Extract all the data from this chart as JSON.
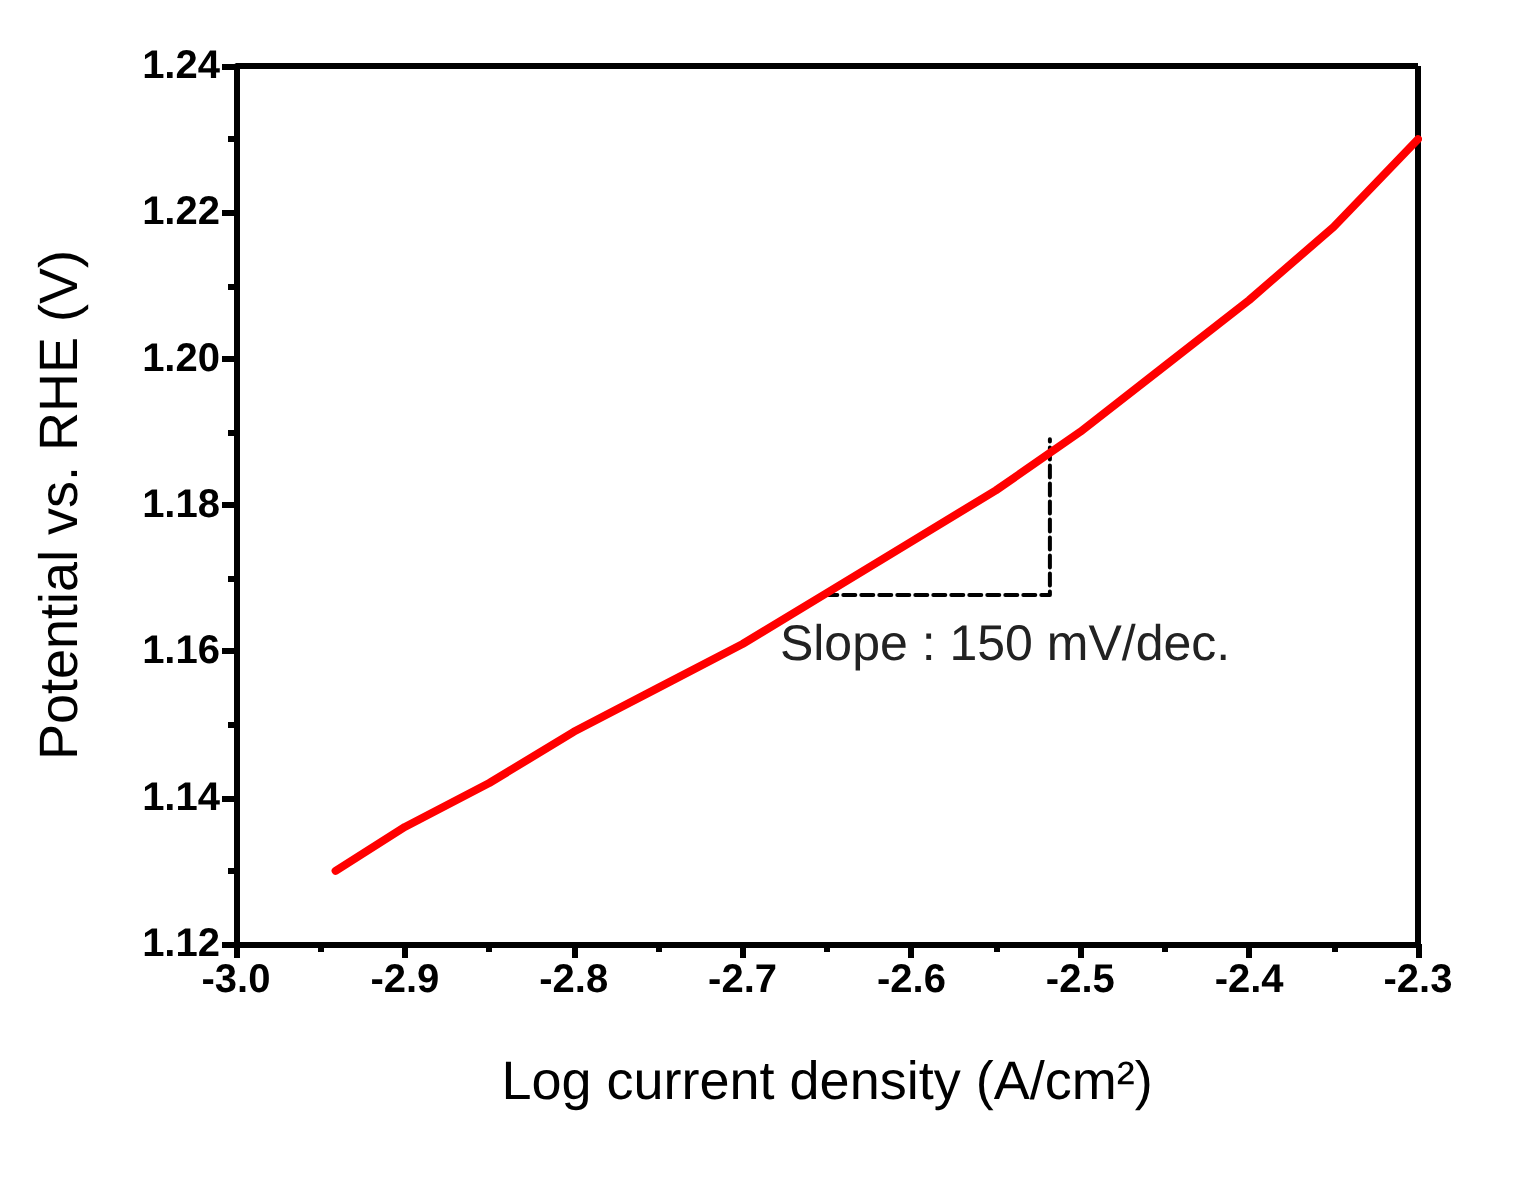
{
  "chart_data": {
    "type": "line",
    "xlabel": "Log current density (A/cm²)",
    "ylabel": "Potential vs. RHE (V)",
    "xlim": [
      -3.0,
      -2.3
    ],
    "xticks": [
      {
        "value": -3.0,
        "label": "-3.0"
      },
      -2.9,
      -2.8,
      -2.7,
      -2.6,
      -2.5,
      -2.4,
      -2.3
    ],
    "ylim": [
      1.12,
      1.24
    ],
    "yticks": [
      1.12,
      1.14,
      1.16,
      1.18,
      {
        "value": 1.2,
        "label": "1.20"
      },
      1.22,
      1.24
    ],
    "marker": "none",
    "series": [
      {
        "color": "#ff0000",
        "line_style": "solid",
        "x": [
          -2.941,
          -2.9,
          -2.85,
          -2.8,
          -2.75,
          -2.7,
          -2.65,
          -2.6,
          -2.55,
          -2.5,
          -2.45,
          -2.4,
          -2.35,
          -2.3
        ],
        "values": [
          1.13,
          1.136,
          1.142,
          1.149,
          1.155,
          1.161,
          1.168,
          1.175,
          1.182,
          1.19,
          1.199,
          1.208,
          1.218,
          1.23
        ]
      },
      {
        "color": "#000000",
        "line_style": "dashed",
        "x": [
          -2.651,
          -2.518,
          -2.518
        ],
        "values": [
          1.1677,
          1.1677,
          1.189
        ]
      }
    ],
    "annotations": [
      {
        "text": "Slope : 150 mV/dec.",
        "x": -2.518,
        "y": 1.1677
      }
    ]
  }
}
